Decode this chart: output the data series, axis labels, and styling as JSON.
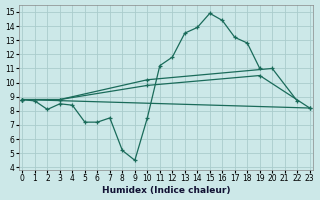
{
  "xlabel": "Humidex (Indice chaleur)",
  "bg_color": "#cce8e8",
  "grid_color": "#aacccc",
  "line_color": "#1a6b5a",
  "xlim": [
    -0.3,
    23.3
  ],
  "ylim": [
    3.8,
    15.5
  ],
  "xticks": [
    0,
    1,
    2,
    3,
    4,
    5,
    6,
    7,
    8,
    9,
    10,
    11,
    12,
    13,
    14,
    15,
    16,
    17,
    18,
    19,
    20,
    21,
    22,
    23
  ],
  "yticks": [
    4,
    5,
    6,
    7,
    8,
    9,
    10,
    11,
    12,
    13,
    14,
    15
  ],
  "line1_x": [
    0,
    1,
    2,
    3,
    4,
    5,
    6,
    7,
    8,
    9,
    10,
    11,
    12,
    13,
    14,
    15,
    16,
    17,
    18,
    19
  ],
  "line1_y": [
    8.8,
    8.7,
    8.1,
    8.5,
    8.4,
    7.2,
    7.2,
    7.5,
    5.2,
    4.5,
    7.5,
    11.2,
    11.8,
    13.5,
    13.9,
    14.9,
    14.4,
    13.2,
    12.8,
    11.0
  ],
  "line2_x": [
    0,
    3,
    10,
    20,
    22
  ],
  "line2_y": [
    8.8,
    8.8,
    10.2,
    11.0,
    8.7
  ],
  "line3_x": [
    0,
    3,
    10,
    19,
    23
  ],
  "line3_y": [
    8.8,
    8.8,
    9.8,
    10.5,
    8.2
  ],
  "line4_x": [
    0,
    23
  ],
  "line4_y": [
    8.8,
    8.2
  ]
}
